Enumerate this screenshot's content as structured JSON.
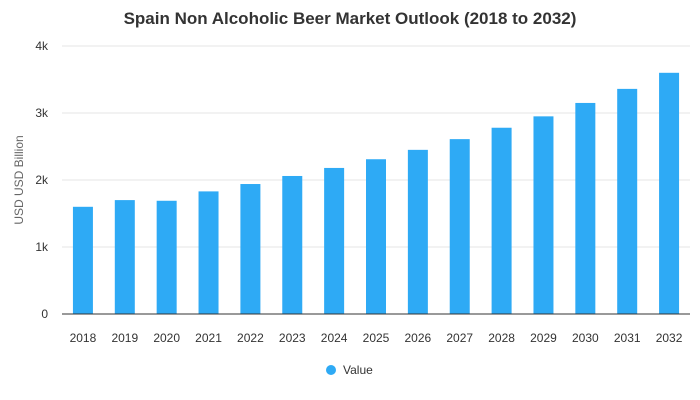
{
  "chart_data": {
    "type": "bar",
    "title": "Spain Non Alcoholic Beer Market Outlook (2018 to 2032)",
    "xlabel": "",
    "ylabel": "USD USD Billion",
    "categories": [
      "2018",
      "2019",
      "2020",
      "2021",
      "2022",
      "2023",
      "2024",
      "2025",
      "2026",
      "2027",
      "2028",
      "2029",
      "2030",
      "2031",
      "2032"
    ],
    "series": [
      {
        "name": "Value",
        "values": [
          1600,
          1700,
          1690,
          1830,
          1940,
          2060,
          2180,
          2310,
          2450,
          2610,
          2780,
          2950,
          3150,
          3360,
          3600
        ]
      }
    ],
    "ylim": [
      0,
      4000
    ],
    "yticks": [
      {
        "value": 0,
        "label": "0"
      },
      {
        "value": 1000,
        "label": "1k"
      },
      {
        "value": 2000,
        "label": "2k"
      },
      {
        "value": 3000,
        "label": "3k"
      },
      {
        "value": 4000,
        "label": "4k"
      }
    ],
    "grid": true,
    "legend_position": "bottom",
    "bar_color": "#2eaaf5"
  }
}
